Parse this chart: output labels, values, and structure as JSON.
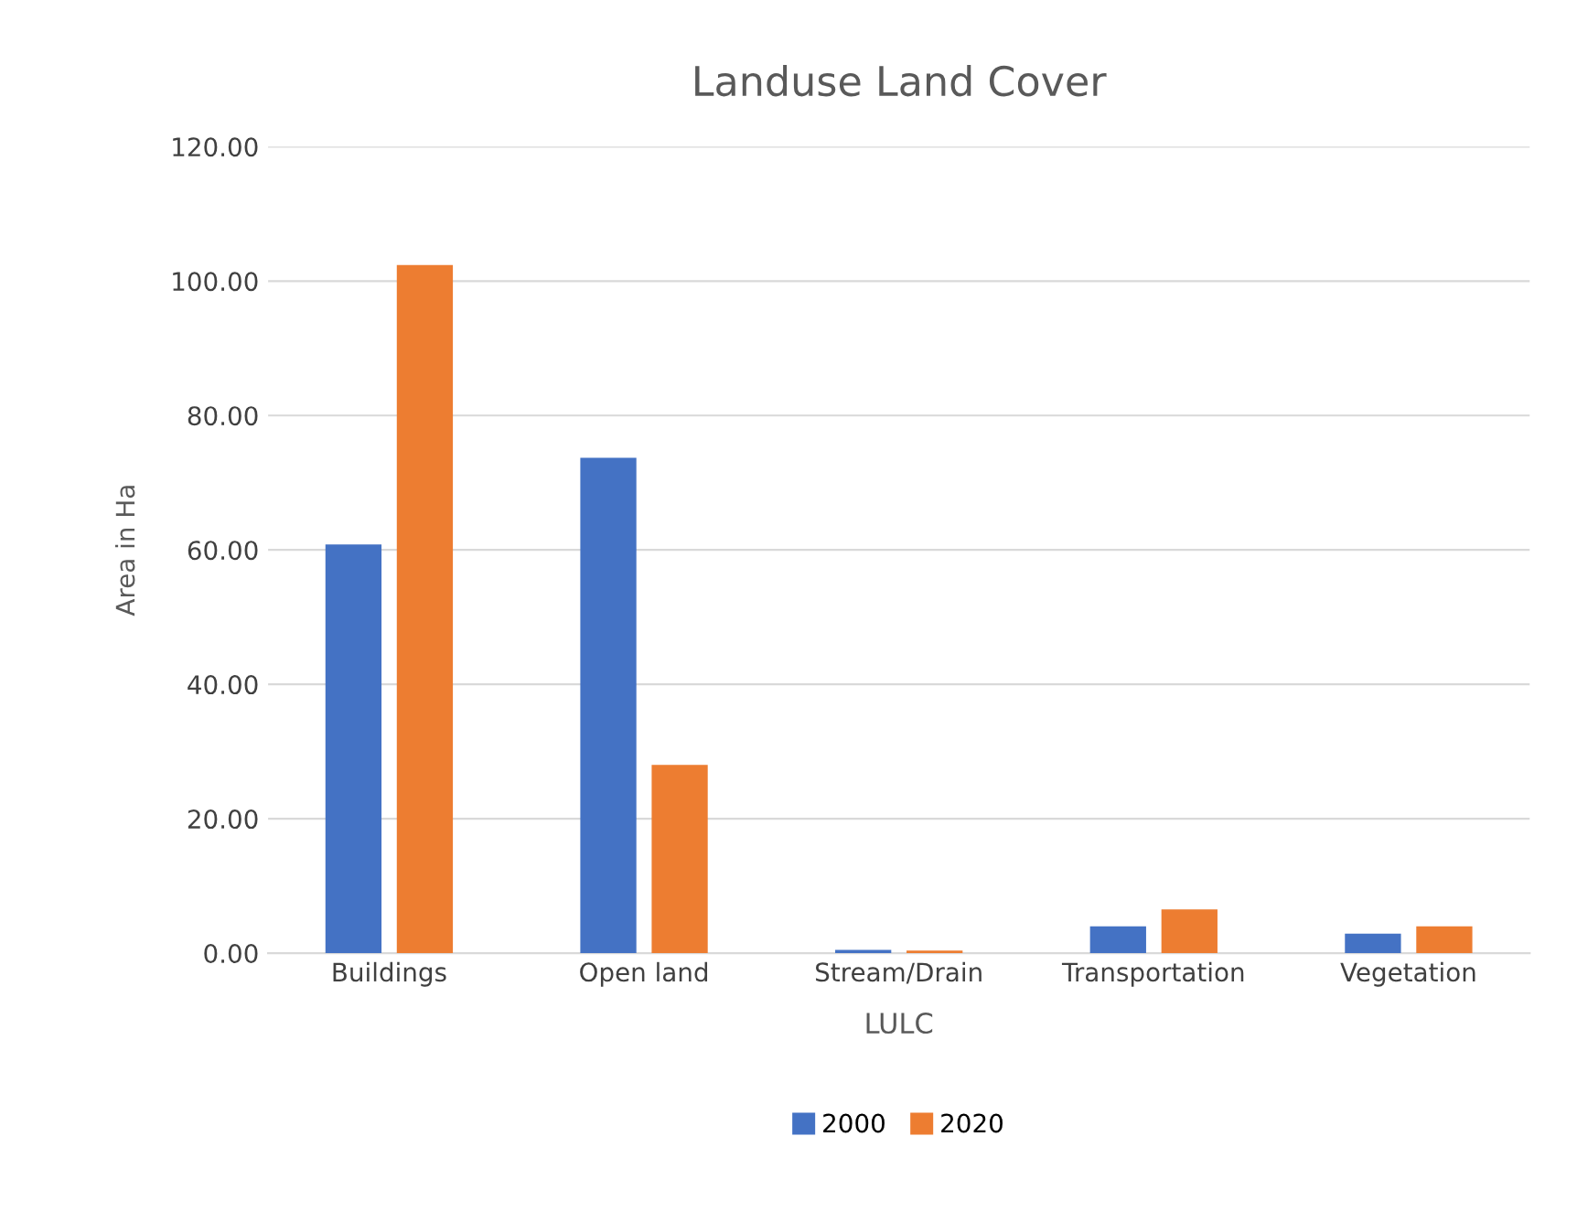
{
  "chart_data": {
    "type": "bar",
    "title": "Landuse Land Cover",
    "xlabel": "LULC",
    "ylabel": "Area in Ha",
    "categories": [
      "Buildings",
      "Open land",
      "Stream/Drain",
      "Transportation",
      "Vegetation"
    ],
    "series": [
      {
        "name": "2000",
        "color": "#4472c4",
        "values": [
          60.8,
          73.7,
          0.5,
          4.0,
          2.9
        ]
      },
      {
        "name": "2020",
        "color": "#ed7d31",
        "values": [
          102.4,
          28.0,
          0.4,
          6.5,
          4.0
        ]
      }
    ],
    "ylim": [
      0,
      120
    ],
    "yticks": [
      {
        "value": 0,
        "label": "0.00"
      },
      {
        "value": 20,
        "label": "20.00"
      },
      {
        "value": 40,
        "label": "40.00"
      },
      {
        "value": 60,
        "label": "60.00"
      },
      {
        "value": 80,
        "label": "80.00"
      },
      {
        "value": 100,
        "label": "100.00"
      },
      {
        "value": 120,
        "label": "120.00"
      }
    ],
    "grid": "y",
    "legend": "bottom"
  }
}
